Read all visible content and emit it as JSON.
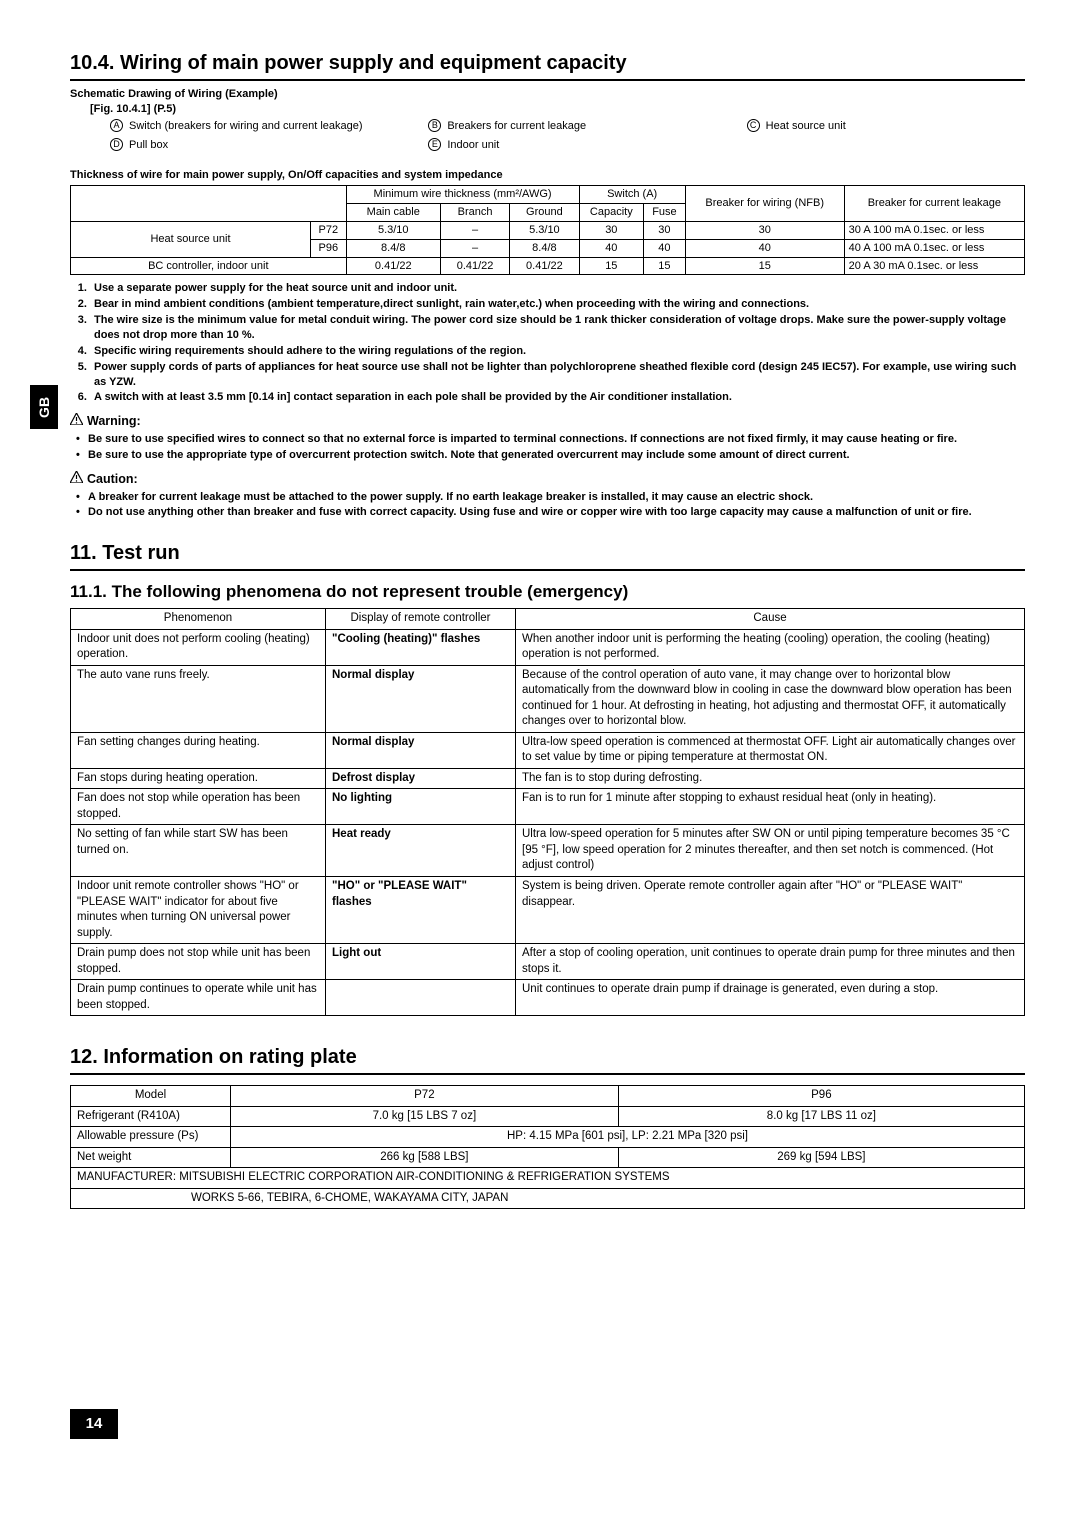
{
  "side_tab": "GB",
  "page_number": "14",
  "s10": {
    "title": "10.4. Wiring of main power supply and equipment capacity",
    "schematic_label": "Schematic Drawing of Wiring (Example)",
    "fig_ref": "[Fig. 10.4.1] (P.5)",
    "legend": {
      "A": "Switch (breakers for wiring and current leakage)",
      "B": "Breakers for current leakage",
      "C": "Heat source unit",
      "D": "Pull box",
      "E": "Indoor unit"
    },
    "table_caption": "Thickness of wire for main power supply, On/Off capacities and system impedance",
    "tbl_headers": {
      "h1": "Minimum wire thickness (mm²/AWG)",
      "h2": "Switch (A)",
      "h3": "Breaker for wiring (NFB)",
      "h4": "Breaker for current leakage",
      "sub": {
        "main": "Main cable",
        "branch": "Branch",
        "ground": "Ground",
        "cap": "Capacity",
        "fuse": "Fuse"
      }
    },
    "rows": [
      {
        "label": "Heat source unit",
        "model": "P72",
        "main": "5.3/10",
        "branch": "–",
        "ground": "5.3/10",
        "cap": "30",
        "fuse": "30",
        "nfb": "30",
        "leak": "30 A 100 mA 0.1sec. or less"
      },
      {
        "label": "",
        "model": "P96",
        "main": "8.4/8",
        "branch": "–",
        "ground": "8.4/8",
        "cap": "40",
        "fuse": "40",
        "nfb": "40",
        "leak": "40 A 100 mA 0.1sec. or less"
      },
      {
        "label": "BC controller, indoor unit",
        "model": "",
        "main": "0.41/22",
        "branch": "0.41/22",
        "ground": "0.41/22",
        "cap": "15",
        "fuse": "15",
        "nfb": "15",
        "leak": "20 A 30 mA 0.1sec. or less"
      }
    ],
    "notes": [
      "Use a separate power supply for the heat source unit and indoor unit.",
      "Bear in mind ambient conditions (ambient temperature,direct sunlight, rain water,etc.) when proceeding with the wiring and connections.",
      "The wire size is the minimum value for metal conduit wiring. The power cord size should be 1 rank thicker consideration of voltage drops. Make sure the power-supply voltage does not drop more than 10 %.",
      "Specific wiring requirements should adhere to the wiring regulations of the region.",
      "Power supply cords of parts of appliances for heat source use shall not be lighter than polychloroprene sheathed flexible cord (design 245 IEC57). For example, use wiring such as YZW.",
      "A switch with at least 3.5 mm [0.14 in] contact separation in each pole shall be provided by the Air conditioner installation."
    ],
    "warning_head": "Warning:",
    "warnings": [
      "Be sure to use specified wires to connect so that no external force is imparted to terminal connections. If connections are not fixed firmly, it may cause heating or fire.",
      "Be sure to use the appropriate type of overcurrent protection switch. Note that generated overcurrent may include some amount of direct current."
    ],
    "caution_head": "Caution:",
    "cautions": [
      "A breaker for current leakage must be attached to the power supply. If no earth leakage breaker is installed, it may cause an electric shock.",
      "Do not use anything other than breaker and fuse with correct capacity. Using fuse and wire or copper wire with too large capacity may cause a malfunction of unit or fire."
    ]
  },
  "s11": {
    "title": "11. Test run",
    "sub": "11.1. The following phenomena do not represent trouble (emergency)",
    "head": {
      "c1": "Phenomenon",
      "c2": "Display of remote controller",
      "c3": "Cause"
    },
    "rows": [
      {
        "p": "Indoor unit does not perform cooling (heating) operation.",
        "d": "\"Cooling (heating)\" flashes",
        "d_bold": true,
        "c": "When another indoor unit is performing the heating (cooling) operation, the cooling (heating) operation is not performed."
      },
      {
        "p": "The auto vane runs freely.",
        "d": "Normal display",
        "d_bold": true,
        "c": "Because of the control operation of auto vane, it may change over to horizontal blow automatically from the downward blow in cooling in case the downward blow operation has been continued for 1 hour. At defrosting in heating, hot adjusting and thermostat OFF, it automatically changes over to horizontal blow."
      },
      {
        "p": "Fan setting changes during heating.",
        "d": "Normal display",
        "d_bold": true,
        "c": "Ultra-low speed operation is commenced at thermostat OFF. Light air automatically changes over to set value by time or piping temperature at thermostat ON."
      },
      {
        "p": "Fan stops during heating operation.",
        "d": "Defrost display",
        "d_bold": true,
        "c": "The fan is to stop during defrosting."
      },
      {
        "p": "Fan does not stop while operation has been stopped.",
        "d": "No lighting",
        "d_bold": true,
        "c": "Fan is to run for 1 minute after stopping to exhaust residual heat (only in heating)."
      },
      {
        "p": "No setting of fan while start SW has been turned on.",
        "d": "Heat ready",
        "d_bold": true,
        "c": "Ultra low-speed operation for 5 minutes after SW ON or until piping temperature becomes 35 °C [95 °F], low speed operation for 2 minutes thereafter, and then set notch is commenced. (Hot adjust control)"
      },
      {
        "p": "Indoor unit remote controller shows \"HO\" or \"PLEASE WAIT\" indicator for about five minutes when turning ON universal power supply.",
        "d": "\"HO\" or \"PLEASE WAIT\" flashes",
        "d_bold": true,
        "c": "System is being driven. Operate remote controller again after \"HO\" or \"PLEASE WAIT\" disappear."
      },
      {
        "p": "Drain pump does not stop while unit has been stopped.",
        "d": "Light out",
        "d_bold": true,
        "c": "After a stop of cooling operation, unit continues to operate drain pump for three minutes and then stops it."
      },
      {
        "p": "Drain pump continues to operate while unit has been stopped.",
        "d": "",
        "d_bold": false,
        "c": "Unit continues to operate drain pump if drainage is generated, even during a stop."
      }
    ]
  },
  "s12": {
    "title": "12. Information on rating plate",
    "head": {
      "model": "Model",
      "p72": "P72",
      "p96": "P96"
    },
    "rows": [
      {
        "l": "Refrigerant (R410A)",
        "a": "7.0 kg [15 LBS 7 oz]",
        "b": "8.0 kg [17 LBS 11 oz]"
      },
      {
        "l": "Allowable pressure (Ps)",
        "span": "HP: 4.15 MPa [601 psi], LP: 2.21 MPa [320 psi]"
      },
      {
        "l": "Net weight",
        "a": "266 kg [588 LBS]",
        "b": "269 kg [594 LBS]"
      }
    ],
    "manufacturer": "MANUFACTURER: MITSUBISHI ELECTRIC CORPORATION AIR-CONDITIONING & REFRIGERATION SYSTEMS",
    "works": "WORKS 5-66, TEBIRA, 6-CHOME, WAKAYAMA CITY, JAPAN"
  }
}
